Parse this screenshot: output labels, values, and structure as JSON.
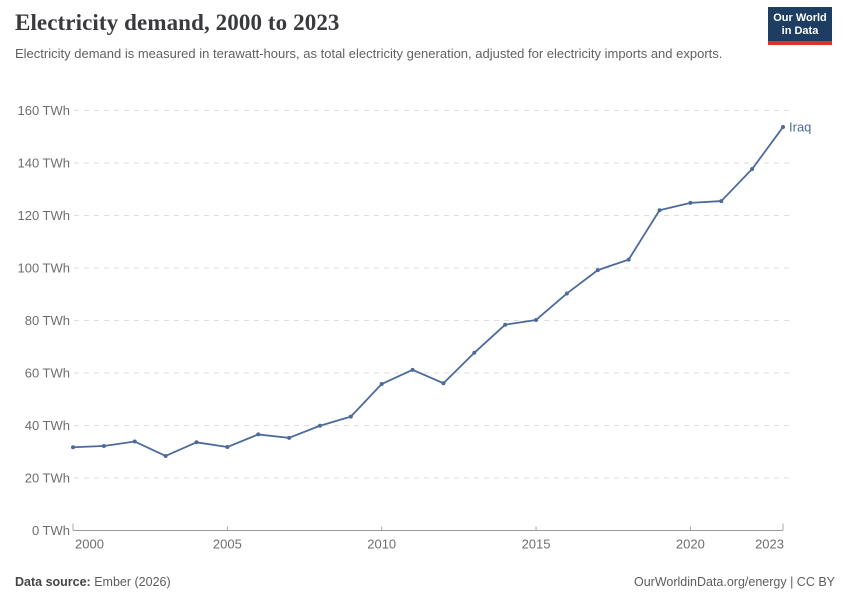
{
  "header": {
    "title": "Electricity demand, 2000 to 2023",
    "subtitle": "Electricity demand is measured in terawatt-hours, as total electricity generation, adjusted for electricity imports and exports.",
    "logo_line1": "Our World",
    "logo_line2": "in Data"
  },
  "footer": {
    "source_label": "Data source:",
    "source_value": " Ember (2026)",
    "credit": "OurWorldinData.org/energy | CC BY"
  },
  "colors": {
    "line": "#4C6A9C",
    "end_label": "#4C6A9C",
    "gridline": "#dedede",
    "axis_line": "#999999",
    "tick_mark": "#a6a6a6",
    "tick_label": "#6e6e6e",
    "logo_bg": "#1d3d63",
    "logo_accent": "#d8352a"
  },
  "chart_data": {
    "type": "line",
    "title": "Electricity demand, 2000 to 2023",
    "xlabel": "",
    "ylabel": "",
    "unit": "TWh",
    "ytick_suffix": " TWh",
    "xlim": [
      2000,
      2023
    ],
    "ylim": [
      0,
      160
    ],
    "xticks": [
      2000,
      2005,
      2010,
      2015,
      2020,
      2023
    ],
    "yticks": [
      0,
      20,
      40,
      60,
      80,
      100,
      120,
      140,
      160
    ],
    "grid": "horizontal-dashed",
    "legend_position": "end-of-line-label",
    "x": [
      2000,
      2001,
      2002,
      2003,
      2004,
      2005,
      2006,
      2007,
      2008,
      2009,
      2010,
      2011,
      2012,
      2013,
      2014,
      2015,
      2016,
      2017,
      2018,
      2019,
      2020,
      2021,
      2022,
      2023
    ],
    "series": [
      {
        "name": "Iraq",
        "values": [
          31.7,
          32.2,
          33.9,
          28.4,
          33.6,
          31.8,
          36.6,
          35.3,
          39.9,
          43.4,
          55.8,
          61.2,
          56.1,
          67.7,
          78.4,
          80.2,
          90.3,
          99.2,
          103.2,
          122.0,
          124.8,
          125.5,
          137.7,
          153.7
        ]
      }
    ]
  }
}
